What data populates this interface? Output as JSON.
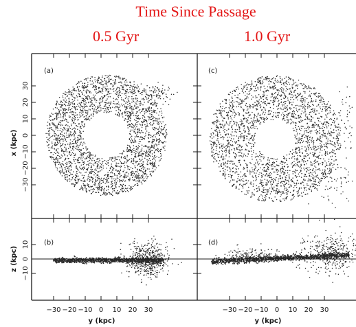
{
  "header": {
    "title": "Time Since Passage",
    "col_left": "0.5 Gyr",
    "col_right": "1.0 Gyr"
  },
  "colors": {
    "title": "#e31414",
    "ink": "#1a1a1a",
    "particles": "#2b2b2b"
  },
  "axes": {
    "top_ylabel": "x (kpc)",
    "bottom_ylabel": "z (kpc)",
    "xlabel": "y (kpc)",
    "top_yticks": [
      "30",
      "20",
      "10",
      "0",
      "−10",
      "−20",
      "−30"
    ],
    "bottom_yticks": [
      "10",
      "0",
      "−10"
    ],
    "xticks": [
      "−30",
      "−20",
      "−10",
      "0",
      "10",
      "20",
      "30"
    ]
  },
  "panels": {
    "a": "(a)",
    "b": "(b)",
    "c": "(c)",
    "d": "(d)"
  }
}
